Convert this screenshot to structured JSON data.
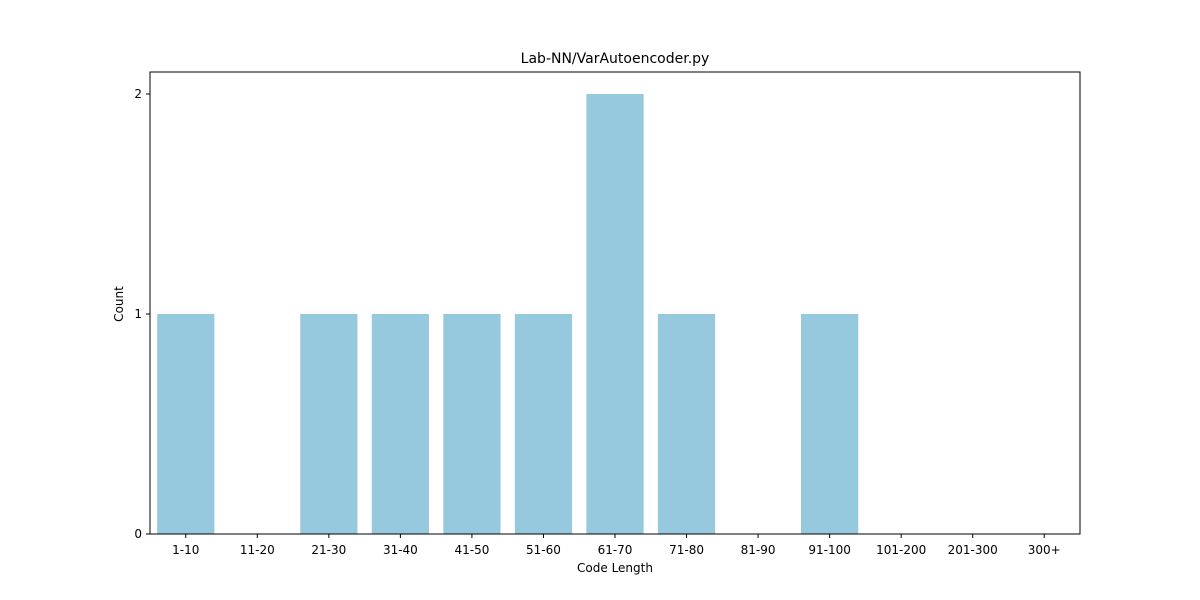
{
  "chart_data": {
    "type": "bar",
    "title": "Lab-NN/VarAutoencoder.py",
    "xlabel": "Code Length",
    "ylabel": "Count",
    "categories": [
      "1-10",
      "11-20",
      "21-30",
      "31-40",
      "41-50",
      "51-60",
      "61-70",
      "71-80",
      "81-90",
      "91-100",
      "101-200",
      "201-300",
      "300+"
    ],
    "values": [
      1,
      0,
      1,
      1,
      1,
      1,
      2,
      1,
      0,
      1,
      0,
      0,
      0
    ],
    "yticks": [
      0,
      1,
      2
    ],
    "ylim": [
      0,
      2.1
    ],
    "grid": false,
    "bar_color": "#96c9de"
  }
}
